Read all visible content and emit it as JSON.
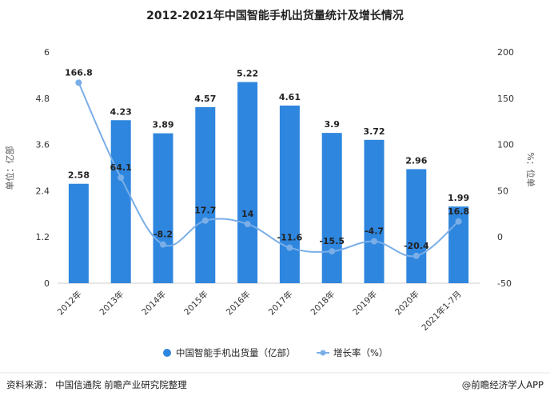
{
  "chart_data": {
    "type": "bar",
    "title": "2012-2021年中国智能手机出货量统计及增长情况",
    "categories": [
      "2012年",
      "2013年",
      "2014年",
      "2015年",
      "2016年",
      "2017年",
      "2018年",
      "2019年",
      "2020年",
      "2021年1-7月"
    ],
    "series": [
      {
        "name": "中国智能手机出货量（亿部）",
        "type": "bar",
        "axis": "left",
        "values": [
          2.58,
          4.23,
          3.89,
          4.57,
          5.22,
          4.61,
          3.9,
          3.72,
          2.96,
          1.99
        ],
        "labels": [
          "2.58",
          "4.23",
          "3.89",
          "4.57",
          "5.22",
          "4.61",
          "3.9",
          "3.72",
          "2.96",
          "1.99"
        ],
        "color": "#2e86de"
      },
      {
        "name": "增长率（%）",
        "type": "line",
        "axis": "right",
        "values": [
          166.8,
          64.1,
          -8.2,
          17.7,
          14,
          -11.6,
          -15.5,
          -4.7,
          -20.4,
          16.8
        ],
        "labels": [
          "166.8",
          "64.1",
          "-8.2",
          "17.7",
          "14",
          "-11.6",
          "-15.5",
          "-4.7",
          "-20.4",
          "16.8"
        ],
        "color": "#7aaee8"
      }
    ],
    "y_left": {
      "label": "单位：亿部",
      "ylim": [
        0,
        6
      ],
      "ticks": [
        0,
        1.2,
        2.4,
        3.6,
        4.8,
        6
      ],
      "tick_labels": [
        "0",
        "1.2",
        "2.4",
        "3.6",
        "4.8",
        "6"
      ]
    },
    "y_right": {
      "label": "%：位单",
      "ylim": [
        -50,
        200
      ],
      "ticks": [
        -50,
        0,
        50,
        100,
        150,
        200
      ],
      "tick_labels": [
        "-50",
        "0",
        "50",
        "100",
        "150",
        "200"
      ]
    },
    "grid": false,
    "legend_position": "bottom"
  },
  "footer": {
    "source": "资料来源：  中国信通院 前瞻产业研究院整理",
    "brand": "@前瞻经济学人APP"
  },
  "colors": {
    "bar": "#2e86de",
    "line": "#7aaee8",
    "axis": "#cccccc"
  }
}
